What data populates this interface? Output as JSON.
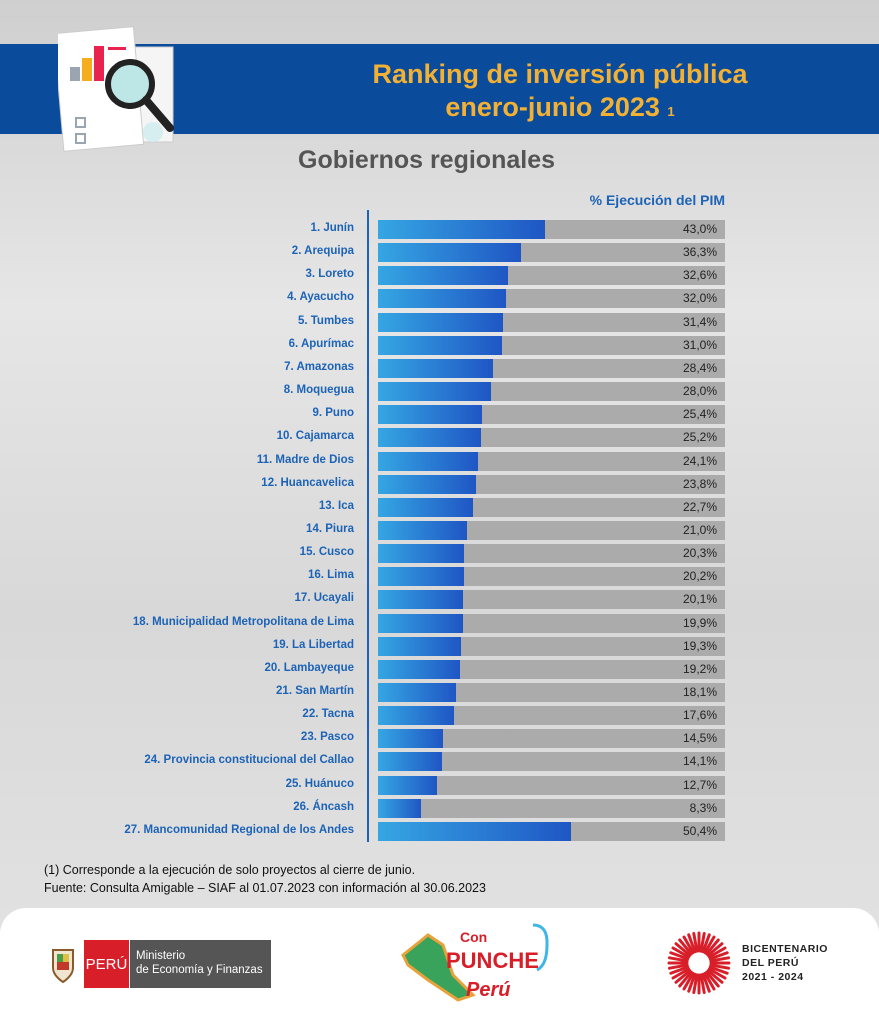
{
  "header": {
    "title_line1": "Ranking de inversión pública",
    "title_line2": "enero-junio 2023",
    "title_sup": "1"
  },
  "chart_data": {
    "type": "bar",
    "title": "Ranking de inversión pública enero-junio 2023",
    "subtitle": "Gobiernos regionales",
    "ylabel": "% Ejecución del PIM",
    "categories": [
      "1. Junín",
      "2. Arequipa",
      "3. Loreto",
      "4. Ayacucho",
      "5. Tumbes",
      "6. Apurímac",
      "7. Amazonas",
      "8. Moquegua",
      "9. Puno",
      "10. Cajamarca",
      "11. Madre de Dios",
      "12. Huancavelica",
      "13. Ica",
      "14. Piura",
      "15. Cusco",
      "16. Lima",
      "17. Ucayali",
      "18. Municipalidad Metropolitana de Lima",
      "19. La Libertad",
      "20. Lambayeque",
      "21. San Martín",
      "22. Tacna",
      "23. Pasco",
      "24. Provincia constitucional del Callao",
      "25. Huánuco",
      "26. Áncash",
      "27. Mancomunidad Regional de los Andes"
    ],
    "values": [
      43.0,
      36.3,
      32.6,
      32.0,
      31.4,
      31.0,
      28.4,
      28.0,
      25.4,
      25.2,
      24.1,
      23.8,
      22.7,
      21.0,
      20.3,
      20.2,
      20.1,
      19.9,
      19.3,
      19.2,
      18.1,
      17.6,
      14.5,
      14.1,
      12.7,
      8.3,
      50.4
    ],
    "labels": [
      "43,0%",
      "36,3%",
      "32,6%",
      "32,0%",
      "31,4%",
      "31,0%",
      "28,4%",
      "28,0%",
      "25,4%",
      "25,2%",
      "24,1%",
      "23,8%",
      "22,7%",
      "21,0%",
      "20,3%",
      "20,2%",
      "20,1%",
      "19,9%",
      "19,3%",
      "19,2%",
      "18,1%",
      "17,6%",
      "14,5%",
      "14,1%",
      "12,7%",
      "8,3%",
      "50,4%"
    ],
    "colors": {
      "fill_start": "#35a6e3",
      "fill_end": "#1f56c4",
      "track": "#ababab"
    }
  },
  "notes": {
    "line1": "(1) Corresponde a la ejecución de solo proyectos al cierre de junio.",
    "line2": "Fuente: Consulta Amigable – SIAF al 01.07.2023 con información al 30.06.2023"
  },
  "footer": {
    "peru": "PERÚ",
    "ministry_line1": "Ministerio",
    "ministry_line2": "de Economía y Finanzas",
    "punche_logo": "Con Punche Perú",
    "bicentenario_line1": "BICENTENARIO",
    "bicentenario_line2": "DEL PERÚ",
    "bicentenario_line3": "2021 - 2024"
  }
}
